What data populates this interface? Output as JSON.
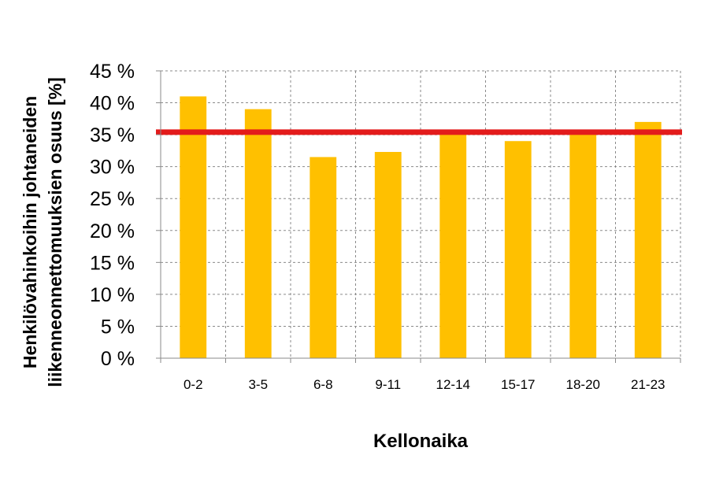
{
  "chart_data": {
    "type": "bar",
    "categories": [
      "0-2",
      "3-5",
      "6-8",
      "9-11",
      "12-14",
      "15-17",
      "18-20",
      "21-23"
    ],
    "values": [
      41,
      39,
      31.5,
      32.3,
      35.5,
      34,
      35.5,
      37
    ],
    "reference_line": {
      "value": 35.4,
      "color": "#e31b1b"
    },
    "ylim": [
      0,
      45
    ],
    "yticks": [
      0,
      5,
      10,
      15,
      20,
      25,
      30,
      35,
      40,
      45
    ],
    "ytick_labels": [
      "0 %",
      "5 %",
      "10 %",
      "15 %",
      "20 %",
      "25 %",
      "30 %",
      "35 %",
      "40 %",
      "45 %"
    ],
    "ylabel_lines": [
      "Henkilövahinkoihin johtaneiden",
      "liikenneonnettomuuksien osuus [%]"
    ],
    "xlabel": "Kellonaika",
    "title": "",
    "grid": true,
    "bar_color": "#ffc000"
  }
}
